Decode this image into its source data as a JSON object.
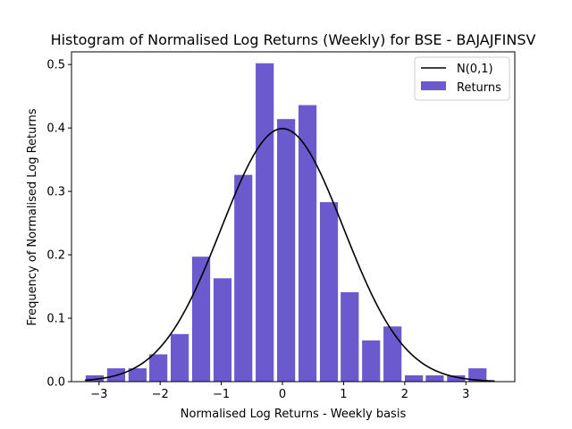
{
  "chart_data": {
    "type": "bar",
    "title": "Histogram of Normalised Log Returns (Weekly) for BSE - BAJAJFINSV",
    "xlabel": "Normalised Log Returns - Weekly basis",
    "ylabel": "Frequency of Normalised Log Returns",
    "xlim": [
      -3.45,
      3.8
    ],
    "ylim": [
      0,
      0.52
    ],
    "xticks": [
      -3,
      -2,
      -1,
      0,
      1,
      2,
      3
    ],
    "xtick_labels": [
      "−3",
      "−2",
      "−1",
      "0",
      "1",
      "2",
      "3"
    ],
    "yticks": [
      0.0,
      0.1,
      0.2,
      0.3,
      0.4,
      0.5
    ],
    "ytick_labels": [
      "0.0",
      "0.1",
      "0.2",
      "0.3",
      "0.4",
      "0.5"
    ],
    "grid": false,
    "legend_position": "top-right",
    "bin_width": 0.3475,
    "bar_width_fraction": 0.85,
    "series": [
      {
        "name": "Returns",
        "kind": "histogram",
        "color": "#6a5acd",
        "bin_centers": [
          -3.07,
          -2.72,
          -2.37,
          -2.03,
          -1.68,
          -1.33,
          -0.98,
          -0.64,
          -0.29,
          0.06,
          0.41,
          0.76,
          1.1,
          1.45,
          1.8,
          2.15,
          2.49,
          2.84,
          3.19
        ],
        "values": [
          0.01,
          0.021,
          0.021,
          0.043,
          0.075,
          0.197,
          0.163,
          0.326,
          0.502,
          0.414,
          0.436,
          0.283,
          0.141,
          0.065,
          0.087,
          0.01,
          0.01,
          0.01,
          0.021
        ]
      },
      {
        "name": "N(0,1)",
        "kind": "line",
        "color": "#000000",
        "function": "standard_normal_pdf",
        "x_range": [
          -3.23,
          3.47
        ]
      }
    ],
    "legend": [
      {
        "label": "N(0,1)",
        "marker": "line",
        "color": "#000000"
      },
      {
        "label": "Returns",
        "marker": "patch",
        "color": "#6a5acd"
      }
    ]
  }
}
